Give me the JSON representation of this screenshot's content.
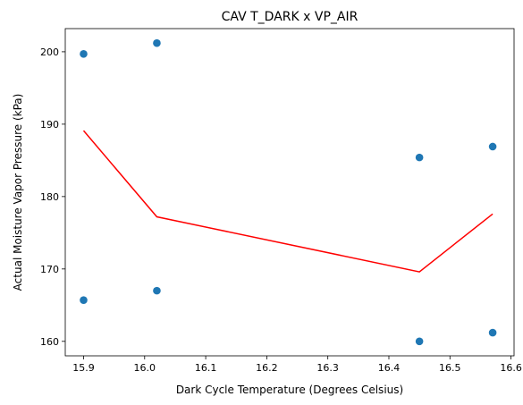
{
  "chart_data": {
    "type": "scatter",
    "title": "CAV T_DARK x VP_AIR",
    "xlabel": "Dark Cycle Temperature (Degrees Celsius)",
    "ylabel": "Actual Moisture Vapor Pressure (kPa)",
    "xlim": [
      15.87,
      16.605
    ],
    "ylim": [
      158.0,
      203.2
    ],
    "xticks": [
      "15.9",
      "16.0",
      "16.1",
      "16.2",
      "16.3",
      "16.4",
      "16.5",
      "16.6"
    ],
    "yticks": [
      "160",
      "170",
      "180",
      "190",
      "200"
    ],
    "grid": false,
    "legend": "none",
    "series": [
      {
        "kind": "scatter",
        "color": "#1f77b4",
        "points": [
          {
            "x": 15.9,
            "y": 199.7
          },
          {
            "x": 15.9,
            "y": 165.7
          },
          {
            "x": 16.02,
            "y": 201.2
          },
          {
            "x": 16.02,
            "y": 167.0
          },
          {
            "x": 16.45,
            "y": 185.4
          },
          {
            "x": 16.45,
            "y": 160.0
          },
          {
            "x": 16.57,
            "y": 186.9
          },
          {
            "x": 16.57,
            "y": 161.2
          }
        ]
      },
      {
        "kind": "line",
        "color": "#ff0000",
        "points": [
          {
            "x": 15.9,
            "y": 189.1
          },
          {
            "x": 16.02,
            "y": 177.2
          },
          {
            "x": 16.45,
            "y": 169.6
          },
          {
            "x": 16.57,
            "y": 177.6
          }
        ]
      }
    ]
  }
}
